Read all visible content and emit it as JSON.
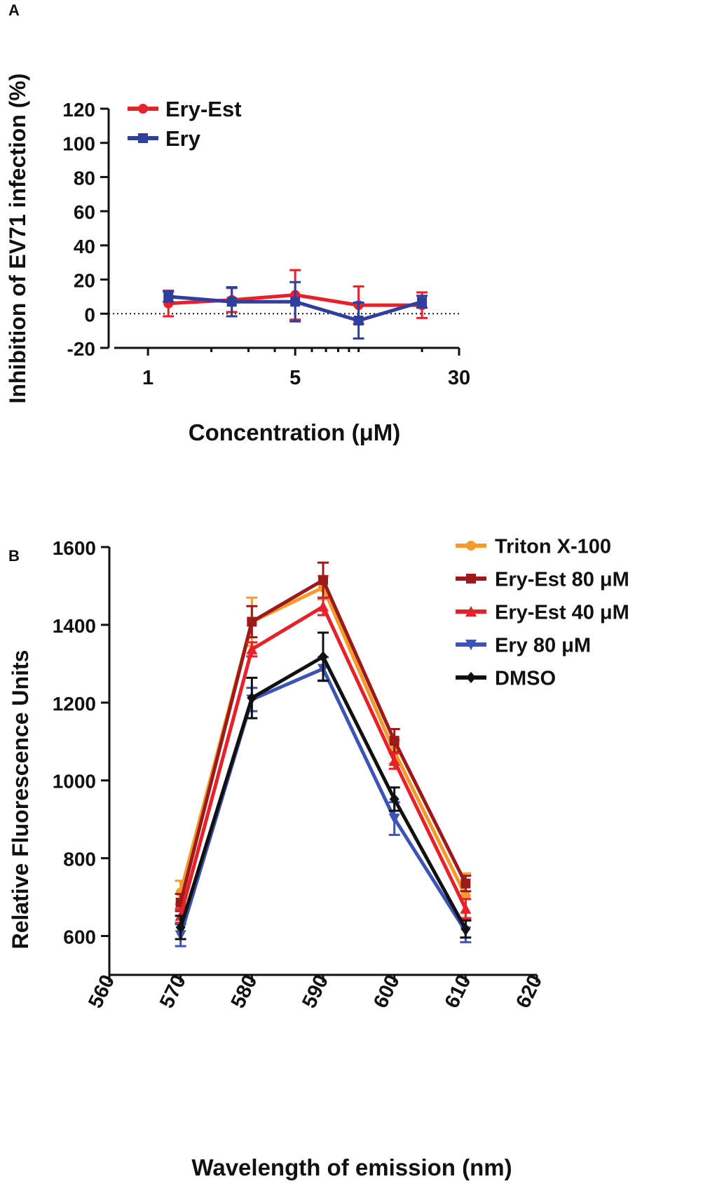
{
  "panels": [
    {
      "id": "A",
      "panel_label": "A",
      "chart_data": {
        "type": "line",
        "x_scale": "log",
        "title": "",
        "xlabel": "Concentration (μM)",
        "ylabel": "Inhibition of EV71 infection (%)",
        "xlim": [
          0.8,
          30
        ],
        "ylim": [
          -20,
          120
        ],
        "x_ticks": [
          1,
          5,
          30
        ],
        "x_tick_labels": [
          "1",
          "5",
          "30"
        ],
        "x_minor_ticks": [
          2,
          3,
          4,
          6,
          7,
          8,
          9,
          10,
          20
        ],
        "y_ticks": [
          -20,
          0,
          20,
          40,
          60,
          80,
          100,
          120
        ],
        "y_tick_labels": [
          "-20",
          "0",
          "20",
          "40",
          "60",
          "80",
          "100",
          "120"
        ],
        "zero_reference_line": true,
        "legend_position": "top-left",
        "x": [
          1.25,
          2.5,
          5,
          10,
          20
        ],
        "series": [
          {
            "name": "Ery-Est",
            "color": "#e8202a",
            "marker": "circle",
            "values": [
              6,
              8,
              11,
              5,
              5
            ],
            "errors": [
              7.5,
              7,
              14.5,
              11,
              7.5
            ]
          },
          {
            "name": "Ery",
            "color": "#2e3f9e",
            "marker": "square",
            "values": [
              10,
              7,
              7,
              -4,
              7
            ],
            "errors": [
              3,
              8.5,
              11.5,
              10.5,
              3.5
            ]
          }
        ]
      }
    },
    {
      "id": "B",
      "panel_label": "B",
      "chart_data": {
        "type": "line",
        "x_scale": "linear",
        "title": "",
        "xlabel": "Wavelength of emission (nm)",
        "ylabel": "Relative Fluorescence Units",
        "xlim": [
          560,
          620
        ],
        "ylim": [
          500,
          1600
        ],
        "x_ticks": [
          560,
          570,
          580,
          590,
          600,
          610,
          620
        ],
        "x_tick_labels": [
          "560",
          "570",
          "580",
          "590",
          "600",
          "610",
          "620"
        ],
        "y_ticks": [
          600,
          800,
          1000,
          1200,
          1400,
          1600
        ],
        "y_tick_labels": [
          "600",
          "800",
          "1000",
          "1200",
          "1400",
          "1600"
        ],
        "legend_position": "top-right",
        "x": [
          570,
          580,
          590,
          600,
          610
        ],
        "series": [
          {
            "name": "Triton X-100",
            "color": "#f39b2b",
            "marker": "circle",
            "values": [
              712,
              1408,
              1496,
              1074,
              704
            ],
            "errors": [
              30,
              62,
              30,
              30,
              57
            ]
          },
          {
            "name": "Ery-Est 80 μM",
            "color": "#9e1a1a",
            "marker": "square",
            "values": [
              686,
              1408,
              1515,
              1102,
              735
            ],
            "errors": [
              22,
              40,
              45,
              30,
              20
            ]
          },
          {
            "name": "Ery-Est 40 μM",
            "color": "#e8202a",
            "marker": "triangle-up",
            "values": [
              652,
              1337,
              1447,
              1050,
              670
            ],
            "errors": [
              18,
              18,
              22,
              20,
              25
            ]
          },
          {
            "name": "Ery 80 μM",
            "color": "#3c54b4",
            "marker": "triangle-down",
            "values": [
              602,
              1208,
              1287,
              902,
              612
            ],
            "errors": [
              28,
              30,
              30,
              42,
              28
            ]
          },
          {
            "name": "DMSO",
            "color": "#111111",
            "marker": "diamond",
            "values": [
              622,
              1212,
              1318,
              952,
              618
            ],
            "errors": [
              30,
              52,
              62,
              30,
              22
            ]
          }
        ]
      }
    }
  ]
}
